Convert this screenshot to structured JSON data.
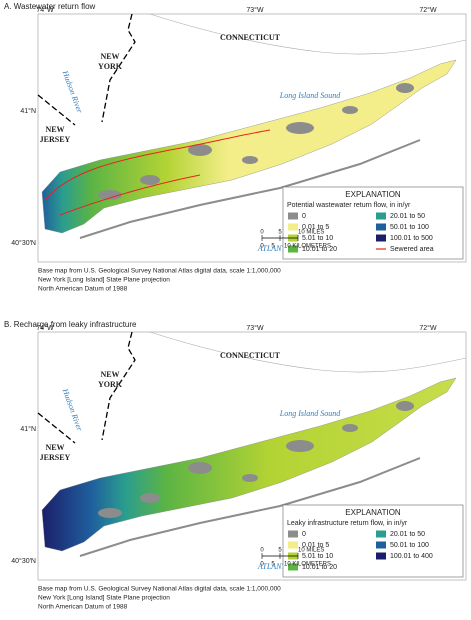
{
  "panels": [
    {
      "title": "A.   Wastewater return flow",
      "longitudes": [
        "74°W",
        "73°W",
        "72°W"
      ],
      "latitudes": [
        "41°N",
        "40°30′N"
      ],
      "places": [
        {
          "lines": [
            "CONNECTICUT"
          ]
        },
        {
          "lines": [
            "NEW",
            "YORK"
          ]
        },
        {
          "lines": [
            "NEW",
            "JERSEY"
          ]
        },
        {
          "lines": [
            "Hudson River"
          ]
        },
        {
          "lines": [
            "Long Island Sound"
          ]
        },
        {
          "lines": [
            "ATLANTIC OCEAN"
          ]
        }
      ],
      "legend": {
        "title": "EXPLANATION",
        "subtitle": "Potential wastewater return flow, in in/yr",
        "items": [
          {
            "label": "0",
            "color": "#8c8c8c"
          },
          {
            "label": "0.01 to 5",
            "color": "#f3ee8a"
          },
          {
            "label": "5.01 to 10",
            "color": "#b3d334"
          },
          {
            "label": "10.01 to 20",
            "color": "#5cb444"
          },
          {
            "label": "20.01 to 50",
            "color": "#2a9d8f"
          },
          {
            "label": "50.01 to 100",
            "color": "#1f5f9e"
          },
          {
            "label": "100.01 to 500",
            "color": "#1b1f6b"
          },
          {
            "label": "Sewered area",
            "color": "#e8231e",
            "kind": "line"
          }
        ]
      },
      "scale": {
        "miles": [
          "0",
          "5",
          "10 MILES"
        ],
        "kilometers": [
          "0",
          "5",
          "10 KILOMETERS"
        ]
      },
      "credits": [
        "Base map from U.S. Geological Survey National Atlas digital data, scale 1:1,000,000",
        "New York [Long Island] State Plane projection",
        "North American Datum of 1988"
      ]
    },
    {
      "title": "B.   Recharge from leaky infrastructure",
      "longitudes": [
        "74°W",
        "73°W",
        "72°W"
      ],
      "latitudes": [
        "41°N",
        "40°30′N"
      ],
      "places": [
        {
          "lines": [
            "CONNECTICUT"
          ]
        },
        {
          "lines": [
            "NEW",
            "YORK"
          ]
        },
        {
          "lines": [
            "NEW",
            "JERSEY"
          ]
        },
        {
          "lines": [
            "Hudson River"
          ]
        },
        {
          "lines": [
            "Long Island Sound"
          ]
        },
        {
          "lines": [
            "ATLANTIC OCEAN"
          ]
        }
      ],
      "legend": {
        "title": "EXPLANATION",
        "subtitle": "Leaky infrastructure return flow, in in/yr",
        "items": [
          {
            "label": "0",
            "color": "#8c8c8c"
          },
          {
            "label": "0.01 to 5",
            "color": "#f3ee8a"
          },
          {
            "label": "5.01 to 10",
            "color": "#b3d334"
          },
          {
            "label": "10.01 to 20",
            "color": "#5cb444"
          },
          {
            "label": "20.01 to 50",
            "color": "#2a9d8f"
          },
          {
            "label": "50.01 to 100",
            "color": "#1f5f9e"
          },
          {
            "label": "100.01 to 400",
            "color": "#1b1f6b"
          }
        ]
      },
      "scale": {
        "miles": [
          "0",
          "5",
          "10 MILES"
        ],
        "kilometers": [
          "0",
          "5",
          "10 KILOMETERS"
        ]
      },
      "credits": [
        "Base map from U.S. Geological Survey National Atlas digital data, scale 1:1,000,000",
        "New York [Long Island] State Plane projection",
        "North American Datum of 1988"
      ]
    }
  ]
}
